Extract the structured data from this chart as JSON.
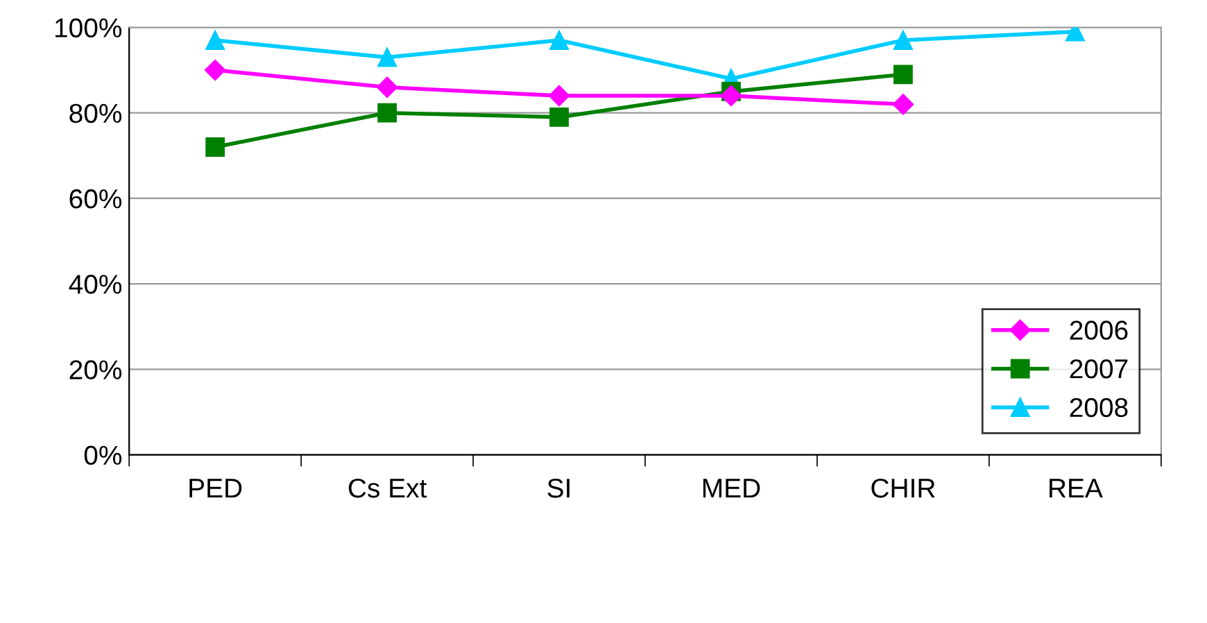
{
  "chart_data": {
    "type": "line",
    "categories": [
      "PED",
      "Cs Ext",
      "SI",
      "MED",
      "CHIR",
      "REA"
    ],
    "series": [
      {
        "name": "2006",
        "color": "#ff00ff",
        "marker": "diamond",
        "values": [
          90,
          86,
          84,
          84,
          82,
          null
        ]
      },
      {
        "name": "2007",
        "color": "#008000",
        "marker": "square",
        "values": [
          72,
          80,
          79,
          85,
          89,
          null
        ]
      },
      {
        "name": "2008",
        "color": "#00ccff",
        "marker": "triangle",
        "values": [
          97,
          93,
          97,
          88,
          97,
          99
        ]
      }
    ],
    "ylim": [
      0,
      100
    ],
    "yticks": [
      {
        "value": 0,
        "label": "0%"
      },
      {
        "value": 20,
        "label": "20%"
      },
      {
        "value": 40,
        "label": "40%"
      },
      {
        "value": 60,
        "label": "60%"
      },
      {
        "value": 80,
        "label": "80%"
      },
      {
        "value": 100,
        "label": "100%"
      }
    ],
    "grid": "y",
    "legend": "bottom right",
    "line_style": "solid"
  }
}
